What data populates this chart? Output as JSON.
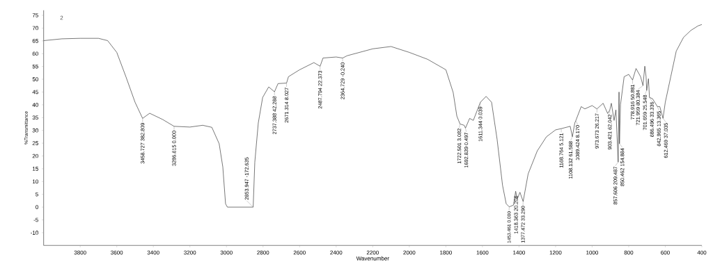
{
  "chart_data": {
    "type": "line",
    "xlabel": "Wavenumber",
    "ylabel": "%Transmittance",
    "xlim": [
      4000,
      400
    ],
    "ylim": [
      -15,
      77
    ],
    "xticks": [
      3800,
      3600,
      3400,
      3200,
      3000,
      2800,
      2600,
      2400,
      2200,
      2000,
      1800,
      1600,
      1400,
      1200,
      1000,
      800,
      600,
      400
    ],
    "yticks": [
      -10,
      -5,
      0,
      5,
      10,
      15,
      20,
      25,
      30,
      35,
      40,
      45,
      50,
      55,
      60,
      65,
      70,
      75
    ],
    "marker": "none",
    "line_style": "solid",
    "x": [
      4000,
      3900,
      3800,
      3700,
      3650,
      3600,
      3550,
      3500,
      3458.727,
      3420,
      3350,
      3286.615,
      3200,
      3130,
      3080,
      3040,
      3020,
      3005,
      2995,
      2853.947,
      2845,
      2826,
      2802,
      2769,
      2737.388,
      2718,
      2671.314,
      2661,
      2600,
      2522,
      2487.794,
      2472,
      2400,
      2364.729,
      2340,
      2200,
      2100,
      2000,
      1900,
      1800,
      1760,
      1740,
      1722.501,
      1700,
      1692.839,
      1670,
      1650,
      1611.344,
      1580,
      1550,
      1520,
      1490,
      1470,
      1453.461,
      1430,
      1418.363,
      1410,
      1395,
      1377.472,
      1350,
      1300,
      1250,
      1200,
      1168.764,
      1120,
      1108.132,
      1095,
      1089.424,
      1060,
      1040,
      1000,
      973.673,
      940,
      915,
      903.421,
      895,
      880,
      870,
      857.606,
      853,
      850.462,
      845,
      825,
      800,
      778.916,
      760,
      735,
      721.959,
      712,
      705,
      701.659,
      692,
      686.496,
      670,
      642.965,
      630,
      612.469,
      600,
      570,
      540,
      500,
      460,
      420,
      400
    ],
    "values": [
      65.1,
      65.8,
      66,
      66,
      65.1,
      60.5,
      51,
      41,
      34.7,
      36.7,
      34.3,
      31.6,
      31.3,
      32,
      31.2,
      24.8,
      15.7,
      1.3,
      0,
      0,
      17.6,
      32.9,
      42.9,
      47,
      45.1,
      48.3,
      48.5,
      51,
      53.7,
      56.5,
      55.1,
      58.3,
      58.7,
      58.3,
      59.2,
      61.9,
      62.8,
      60.5,
      57.8,
      53.7,
      44.8,
      35.6,
      32.5,
      32,
      30.9,
      34.7,
      33.9,
      41,
      43.3,
      41,
      26.6,
      8.5,
      1.3,
      0.1,
      0.8,
      6.2,
      3.1,
      5.8,
      2.2,
      13,
      22,
      27.5,
      30.2,
      30.7,
      31.6,
      27.5,
      32.9,
      33.8,
      39.3,
      38.4,
      39.7,
      38.4,
      40.6,
      36.6,
      38,
      40.6,
      33.9,
      38,
      17.6,
      45,
      24.8,
      40,
      51,
      51.9,
      49.7,
      54.2,
      51,
      47.5,
      55.1,
      51,
      45.6,
      50.2,
      42.9,
      42.4,
      39.3,
      39.3,
      34.7,
      41,
      51,
      61,
      66.4,
      69.1,
      70.9,
      71.4
    ],
    "color": "#333333",
    "annotations": [
      "2",
      {
        "text": "3458.727 382.809",
        "x": 3458.727,
        "y": 34.7
      },
      {
        "text": "3286.615 0.000",
        "x": 3286.615,
        "y": 31.6
      },
      {
        "text": "2853.947 -172.635",
        "x": 2853.947,
        "y": 0
      },
      {
        "text": "2737.388 42.288",
        "x": 2737.388,
        "y": 45.1
      },
      {
        "text": "2671.314 8.027",
        "x": 2671.314,
        "y": 48.5
      },
      {
        "text": "2487.794 22.373",
        "x": 2487.794,
        "y": 55.1
      },
      {
        "text": "2364.729 -0.240",
        "x": 2364.729,
        "y": 58.3
      },
      {
        "text": "1722.501 3.082",
        "x": 1722.501,
        "y": 32.5
      },
      {
        "text": "1692.839 0.497",
        "x": 1692.839,
        "y": 30.9
      },
      {
        "text": "1611.344 0.039",
        "x": 1611.344,
        "y": 41
      },
      {
        "text": "1453.461 0.000",
        "x": 1453.461,
        "y": 0.1
      },
      {
        "text": "1418.363 20.206",
        "x": 1418.363,
        "y": 6.2
      },
      {
        "text": "1377.472 33.290",
        "x": 1377.472,
        "y": 2.2
      },
      {
        "text": "1168.764 5.121",
        "x": 1168.764,
        "y": 30.7
      },
      {
        "text": "1108.132 61.588",
        "x": 1108.132,
        "y": 27.5
      },
      {
        "text": "1089.424 8.170",
        "x": 1089.424,
        "y": 33.8
      },
      {
        "text": "973.673 26.217",
        "x": 973.673,
        "y": 38.4
      },
      {
        "text": "903.421 62.042",
        "x": 903.421,
        "y": 38
      },
      {
        "text": "857.606 209.487",
        "x": 857.606,
        "y": 17.6
      },
      {
        "text": "850.462 154.884",
        "x": 850.462,
        "y": 24.8
      },
      {
        "text": "778.916 50.881",
        "x": 778.916,
        "y": 49.7
      },
      {
        "text": "721.959 80.384",
        "x": 721.959,
        "y": 47.5
      },
      {
        "text": "701.659 25.548",
        "x": 701.659,
        "y": 45.6
      },
      {
        "text": "686.496 33.336",
        "x": 686.496,
        "y": 42.9
      },
      {
        "text": "642.965 13.365",
        "x": 642.965,
        "y": 39.3
      },
      {
        "text": "612.469 37.035",
        "x": 612.469,
        "y": 34.7
      }
    ]
  }
}
